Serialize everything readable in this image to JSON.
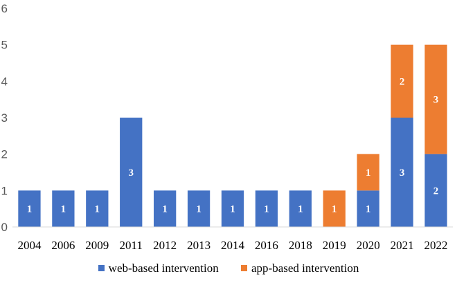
{
  "chart_data": {
    "type": "bar",
    "stacked": true,
    "categories": [
      "2004",
      "2006",
      "2009",
      "2011",
      "2012",
      "2013",
      "2014",
      "2016",
      "2018",
      "2019",
      "2020",
      "2021",
      "2022"
    ],
    "series": [
      {
        "name": "web-based intervention",
        "color": "#4472C4",
        "values": [
          1,
          1,
          1,
          3,
          1,
          1,
          1,
          1,
          1,
          0,
          1,
          3,
          2
        ]
      },
      {
        "name": "app-based intervention",
        "color": "#ED7D31",
        "values": [
          0,
          0,
          0,
          0,
          0,
          0,
          0,
          0,
          0,
          1,
          1,
          2,
          3
        ]
      }
    ],
    "ylim": [
      0,
      6
    ],
    "yticks": [
      0,
      1,
      2,
      3,
      4,
      5,
      6
    ],
    "grid": false,
    "legend_position": "bottom",
    "data_labels": true,
    "title": "",
    "xlabel": "",
    "ylabel": ""
  }
}
